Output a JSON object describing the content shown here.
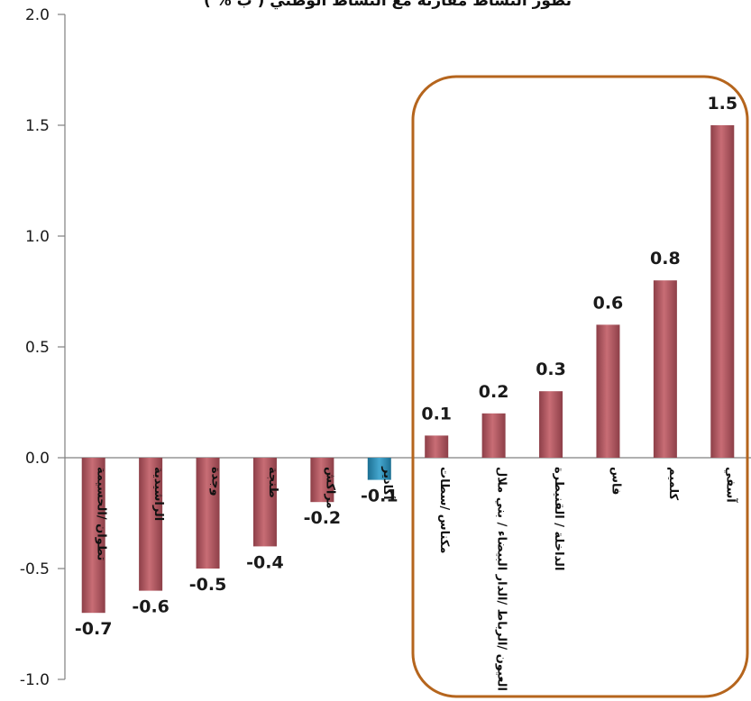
{
  "chart_data": {
    "type": "bar",
    "title": "تطور النشاط مقارنة مع النشاط الوطني ( ب % )",
    "categories": [
      "تطوان /الحسيمة",
      "الراشيدية",
      "وجدة",
      "طنجة",
      "مراكش",
      "أكادير",
      "مكناس /سطات",
      "العيون /الرباط /الدار البيضاء / بني ملال",
      "الداخلة / القنيطرة",
      "فاس",
      "كلميم",
      "آسفي"
    ],
    "values": [
      -0.7,
      -0.6,
      -0.5,
      -0.4,
      -0.2,
      -0.1,
      0.1,
      0.2,
      0.3,
      0.6,
      0.8,
      1.5
    ],
    "data_labels": [
      "-0.7",
      "-0.6",
      "-0.5",
      "-0.4",
      "-0.2",
      "-0.1",
      "0.1",
      "0.2",
      "0.3",
      "0.6",
      "0.8",
      "1.5"
    ],
    "ylim": [
      -1.0,
      2.0
    ],
    "yticks": [
      "2.0",
      "1.5",
      "1.0",
      "0.5",
      "0.0",
      "-0.5",
      "-1.0"
    ],
    "ytick_values": [
      2.0,
      1.5,
      1.0,
      0.5,
      0.0,
      -0.5,
      -1.0
    ],
    "xlabel": "",
    "ylabel": "",
    "grid": false,
    "legend": "none",
    "highlight": "rounded box around the six positive bars",
    "colors": {
      "bar": "#b35a63",
      "bar_highlight": "#2e86ab",
      "highlight_box": "#b5651d",
      "axis": "#808080"
    }
  }
}
